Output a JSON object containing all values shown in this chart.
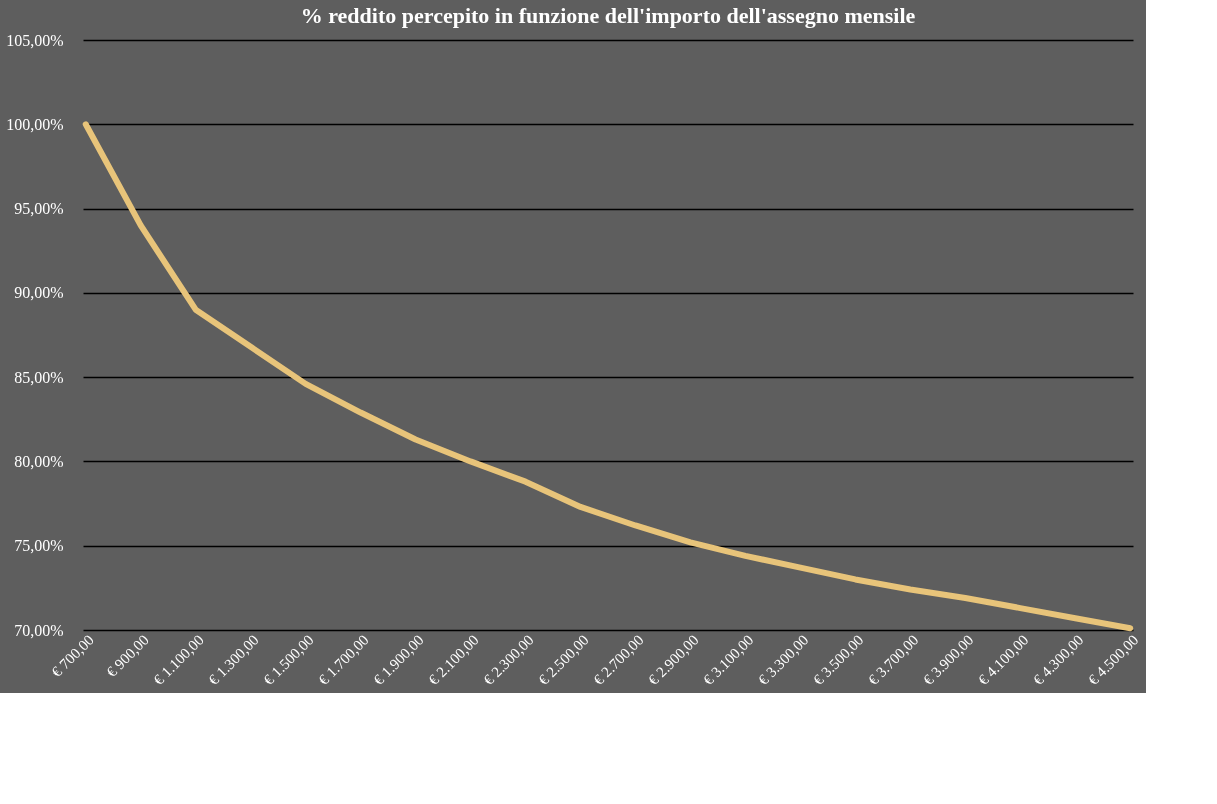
{
  "chart_data": {
    "type": "line",
    "title": "% reddito percepito in funzione dell'importo dell'assegno mensile",
    "categories": [
      "€ 700,00",
      "€ 900,00",
      "€ 1.100,00",
      "€ 1.300,00",
      "€ 1.500,00",
      "€ 1.700,00",
      "€ 1.900,00",
      "€ 2.100,00",
      "€ 2.300,00",
      "€ 2.500,00",
      "€ 2.700,00",
      "€ 2.900,00",
      "€ 3.100,00",
      "€ 3.300,00",
      "€ 3.500,00",
      "€ 3.700,00",
      "€ 3.900,00",
      "€ 4.100,00",
      "€ 4.300,00",
      "€ 4.500,00"
    ],
    "series": [
      {
        "color": "#e8c47a",
        "values": [
          100.0,
          94.0,
          89.0,
          86.8,
          84.6,
          82.9,
          81.3,
          80.0,
          78.8,
          77.3,
          76.2,
          75.2,
          74.4,
          73.7,
          73.0,
          72.4,
          71.9,
          71.3,
          70.7,
          70.1
        ]
      }
    ],
    "ylim": [
      70,
      105
    ],
    "yticks": [
      {
        "value": 70,
        "label": "70,00%"
      },
      {
        "value": 75,
        "label": "75,00%"
      },
      {
        "value": 80,
        "label": "80,00%"
      },
      {
        "value": 85,
        "label": "85,00%"
      },
      {
        "value": 90,
        "label": "90,00%"
      },
      {
        "value": 95,
        "label": "95,00%"
      },
      {
        "value": 100,
        "label": "100,00%"
      },
      {
        "value": 105,
        "label": "105,00%"
      }
    ],
    "grid": "y",
    "legend": false,
    "marker": "none",
    "line_style": "solid"
  }
}
